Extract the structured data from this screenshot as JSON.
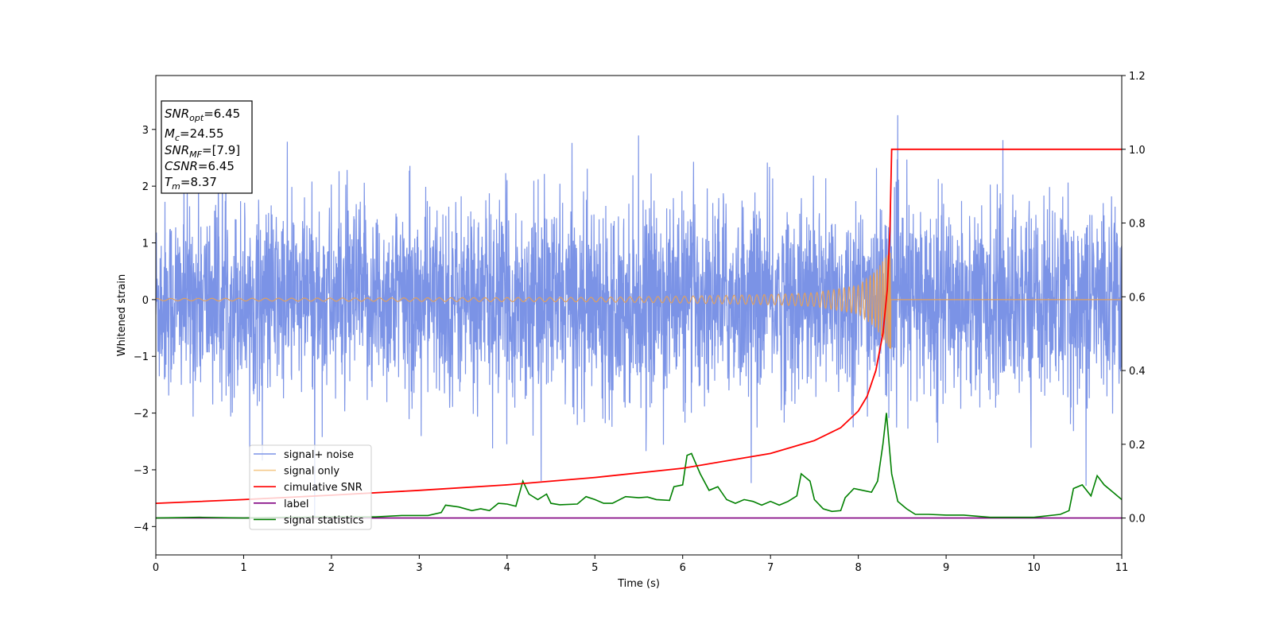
{
  "chart_data": {
    "type": "line",
    "xlabel": "Time (s)",
    "ylabel": "Whitened strain",
    "xlim": [
      0,
      11
    ],
    "ylim_left": [
      -4.5,
      3.95
    ],
    "ylim_right": [
      -0.1,
      1.2
    ],
    "x_ticks": [
      "0",
      "1",
      "2",
      "3",
      "4",
      "5",
      "6",
      "7",
      "8",
      "9",
      "10",
      "11"
    ],
    "y_left_ticks": [
      "3",
      "2",
      "1",
      "0",
      "−1",
      "−2",
      "−3",
      "−4"
    ],
    "y_right_ticks": [
      "1.2",
      "1.0",
      "0.8",
      "0.6",
      "0.4",
      "0.2",
      "0.0"
    ],
    "info_box": {
      "snr_opt": {
        "sym": "SNR",
        "sub": "opt",
        "val": "=6.45"
      },
      "mc": {
        "sym": "M",
        "sub": "c",
        "val": "=24.55"
      },
      "snr_mf": {
        "sym": "SNR",
        "sub": "MF",
        "val": "=[7.9]"
      },
      "csnr": {
        "sym": "CSNR",
        "sub": "",
        "val": "=6.45"
      },
      "tm": {
        "sym": "T",
        "sub": "m",
        "val": "=8.37"
      }
    },
    "merger_time": 8.37,
    "signal_noise": {
      "name": "signal+ noise",
      "color": "#7b93e6",
      "description": "whitened strain, noise amplitude about ±1.5 with spikes to ±3.5"
    },
    "signal_only": {
      "name": "signal only",
      "color": "#e0a060",
      "amplitude": [
        [
          0,
          0.02
        ],
        [
          5,
          0.04
        ],
        [
          6,
          0.06
        ],
        [
          7,
          0.09
        ],
        [
          7.5,
          0.12
        ],
        [
          8.0,
          0.25
        ],
        [
          8.2,
          0.5
        ],
        [
          8.37,
          0.9
        ],
        [
          8.39,
          0.0
        ],
        [
          11,
          0.0
        ]
      ]
    },
    "cumulative_snr": {
      "name": "cimulative SNR",
      "color": "#ff0000",
      "points": [
        [
          0,
          0.04
        ],
        [
          1,
          0.05
        ],
        [
          2,
          0.062
        ],
        [
          3,
          0.075
        ],
        [
          4,
          0.09
        ],
        [
          5,
          0.11
        ],
        [
          6,
          0.135
        ],
        [
          7,
          0.175
        ],
        [
          7.5,
          0.21
        ],
        [
          7.8,
          0.245
        ],
        [
          8.0,
          0.29
        ],
        [
          8.1,
          0.33
        ],
        [
          8.2,
          0.4
        ],
        [
          8.28,
          0.5
        ],
        [
          8.33,
          0.62
        ],
        [
          8.36,
          0.78
        ],
        [
          8.38,
          1.0
        ],
        [
          11,
          1.0
        ]
      ]
    },
    "label": {
      "name": "label",
      "color": "#800080",
      "points": [
        [
          0,
          0.0
        ],
        [
          11,
          0.0
        ]
      ]
    },
    "signal_statistics": {
      "name": "signal statistics",
      "color": "#008000",
      "points": [
        [
          0,
          0.0
        ],
        [
          0.5,
          0.002
        ],
        [
          1.0,
          0.0
        ],
        [
          1.5,
          0.002
        ],
        [
          2.0,
          0.003
        ],
        [
          2.5,
          0.003
        ],
        [
          2.8,
          0.007
        ],
        [
          3.1,
          0.007
        ],
        [
          3.25,
          0.015
        ],
        [
          3.3,
          0.035
        ],
        [
          3.45,
          0.03
        ],
        [
          3.6,
          0.02
        ],
        [
          3.7,
          0.025
        ],
        [
          3.8,
          0.02
        ],
        [
          3.9,
          0.04
        ],
        [
          4.0,
          0.038
        ],
        [
          4.1,
          0.032
        ],
        [
          4.18,
          0.1
        ],
        [
          4.25,
          0.065
        ],
        [
          4.35,
          0.05
        ],
        [
          4.45,
          0.065
        ],
        [
          4.5,
          0.04
        ],
        [
          4.6,
          0.036
        ],
        [
          4.8,
          0.038
        ],
        [
          4.9,
          0.058
        ],
        [
          5.0,
          0.05
        ],
        [
          5.1,
          0.04
        ],
        [
          5.2,
          0.04
        ],
        [
          5.35,
          0.058
        ],
        [
          5.5,
          0.055
        ],
        [
          5.6,
          0.057
        ],
        [
          5.7,
          0.05
        ],
        [
          5.85,
          0.048
        ],
        [
          5.9,
          0.085
        ],
        [
          6.0,
          0.09
        ],
        [
          6.05,
          0.17
        ],
        [
          6.1,
          0.175
        ],
        [
          6.2,
          0.12
        ],
        [
          6.3,
          0.075
        ],
        [
          6.4,
          0.085
        ],
        [
          6.5,
          0.05
        ],
        [
          6.6,
          0.04
        ],
        [
          6.7,
          0.05
        ],
        [
          6.8,
          0.045
        ],
        [
          6.9,
          0.035
        ],
        [
          7.0,
          0.045
        ],
        [
          7.1,
          0.035
        ],
        [
          7.2,
          0.045
        ],
        [
          7.3,
          0.06
        ],
        [
          7.35,
          0.12
        ],
        [
          7.45,
          0.1
        ],
        [
          7.5,
          0.05
        ],
        [
          7.6,
          0.025
        ],
        [
          7.7,
          0.018
        ],
        [
          7.8,
          0.02
        ],
        [
          7.85,
          0.055
        ],
        [
          7.95,
          0.08
        ],
        [
          8.05,
          0.075
        ],
        [
          8.15,
          0.07
        ],
        [
          8.22,
          0.1
        ],
        [
          8.28,
          0.2
        ],
        [
          8.32,
          0.285
        ],
        [
          8.38,
          0.12
        ],
        [
          8.45,
          0.045
        ],
        [
          8.55,
          0.025
        ],
        [
          8.65,
          0.01
        ],
        [
          8.8,
          0.01
        ],
        [
          9.0,
          0.008
        ],
        [
          9.2,
          0.008
        ],
        [
          9.5,
          0.002
        ],
        [
          10.0,
          0.002
        ],
        [
          10.3,
          0.01
        ],
        [
          10.4,
          0.02
        ],
        [
          10.45,
          0.08
        ],
        [
          10.55,
          0.09
        ],
        [
          10.65,
          0.06
        ],
        [
          10.72,
          0.115
        ],
        [
          10.8,
          0.09
        ],
        [
          10.9,
          0.07
        ],
        [
          11.0,
          0.05
        ]
      ]
    },
    "legend": {
      "placement": "lower-left",
      "items": [
        {
          "label": "signal+ noise",
          "color": "#7b93e6"
        },
        {
          "label": "signal only",
          "color": "#f4c98a"
        },
        {
          "label": "cimulative SNR",
          "color": "#ff0000"
        },
        {
          "label": "label",
          "color": "#800080"
        },
        {
          "label": "signal statistics",
          "color": "#008000"
        }
      ]
    }
  }
}
